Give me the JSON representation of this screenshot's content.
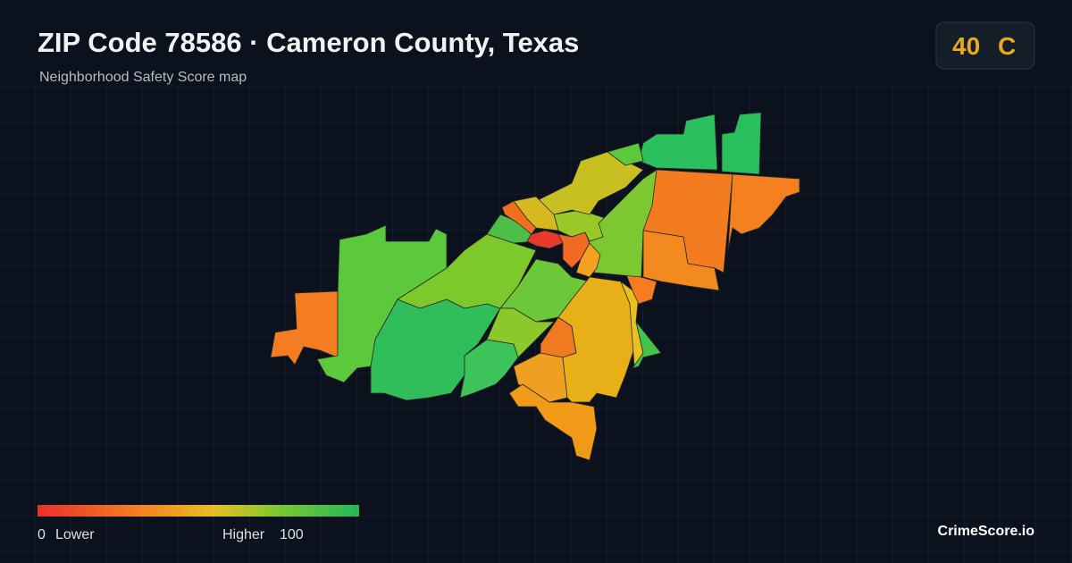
{
  "header": {
    "title": "ZIP Code 78586 · Cameron County, Texas",
    "subtitle": "Neighborhood Safety Score map"
  },
  "score": {
    "value": 40,
    "grade": "C"
  },
  "legend": {
    "min": 0,
    "min_label": "Lower",
    "max_label": "Higher",
    "max": 100
  },
  "brand": "CrimeScore.io"
}
